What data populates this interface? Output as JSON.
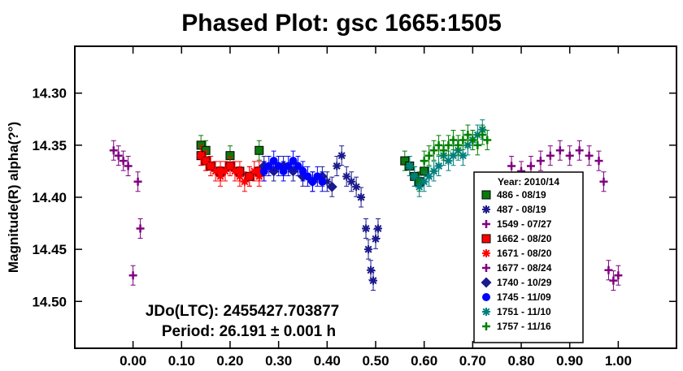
{
  "chart_data": {
    "type": "scatter",
    "title": "Phased Plot: gsc 1665:1505",
    "xlabel": "",
    "ylabel": "Magnitude(R) alpha(?°)",
    "xlim": [
      -0.12,
      1.12
    ],
    "ylim": [
      14.545,
      14.255
    ],
    "y_inverted": true,
    "x_ticks": [
      "0.00",
      "0.10",
      "0.20",
      "0.30",
      "0.40",
      "0.50",
      "0.60",
      "0.70",
      "0.80",
      "0.90",
      "1.00"
    ],
    "x_tick_values": [
      0.0,
      0.1,
      0.2,
      0.3,
      0.4,
      0.5,
      0.6,
      0.7,
      0.8,
      0.9,
      1.0
    ],
    "y_ticks": [
      "14.30",
      "14.35",
      "14.40",
      "14.45",
      "14.50"
    ],
    "y_tick_values": [
      14.3,
      14.35,
      14.4,
      14.45,
      14.5
    ],
    "grid": false,
    "legend_position": "lower-right",
    "annotations": [
      "JDo(LTC): 2455427.703877",
      "Period: 26.191 ± 0.001 h"
    ],
    "legend": {
      "title": "Year: 2010/14",
      "entries": [
        {
          "label": "486 - 08/19",
          "color": "#0a7a0a",
          "marker": "square"
        },
        {
          "label": "487 - 08/19",
          "color": "#1a1a8c",
          "marker": "asterisk"
        },
        {
          "label": "1549 - 07/27",
          "color": "#800080",
          "marker": "plus"
        },
        {
          "label": "1662 - 08/20",
          "color": "#ff0000",
          "marker": "square"
        },
        {
          "label": "1671 - 08/20",
          "color": "#ff0000",
          "marker": "asterisk"
        },
        {
          "label": "1677 - 08/24",
          "color": "#800080",
          "marker": "plus"
        },
        {
          "label": "1740 - 10/29",
          "color": "#1a1a8c",
          "marker": "diamond"
        },
        {
          "label": "1745 - 11/09",
          "color": "#0000ff",
          "marker": "circle"
        },
        {
          "label": "1751 - 11/10",
          "color": "#008080",
          "marker": "asterisk"
        },
        {
          "label": "1757 - 11/16",
          "color": "#008000",
          "marker": "plus"
        }
      ]
    },
    "series": [
      {
        "name": "486 - 08/19",
        "color": "#0a7a0a",
        "marker": "square",
        "x": [
          0.14,
          0.15,
          0.2,
          0.26,
          0.56,
          0.57,
          0.58,
          0.59,
          0.6
        ],
        "y": [
          14.35,
          14.355,
          14.36,
          14.355,
          14.365,
          14.37,
          14.38,
          14.385,
          14.375
        ]
      },
      {
        "name": "487 - 08/19",
        "color": "#1a1a8c",
        "marker": "asterisk",
        "x": [
          0.4,
          0.42,
          0.43,
          0.44,
          0.45,
          0.46,
          0.47,
          0.48,
          0.485,
          0.49,
          0.495,
          0.5,
          0.505
        ],
        "y": [
          14.385,
          14.37,
          14.36,
          14.38,
          14.385,
          14.39,
          14.4,
          14.43,
          14.45,
          14.47,
          14.48,
          14.44,
          14.43
        ]
      },
      {
        "name": "1549 - 07/27",
        "color": "#800080",
        "marker": "plus",
        "x": [
          -0.04,
          -0.03,
          -0.02,
          -0.01,
          0.0,
          0.01,
          0.015
        ],
        "y": [
          14.355,
          14.36,
          14.365,
          14.37,
          14.475,
          14.385,
          14.43
        ]
      },
      {
        "name": "1662 - 08/20",
        "color": "#ff0000",
        "marker": "square",
        "x": [
          0.14,
          0.15,
          0.16,
          0.18,
          0.2,
          0.22,
          0.24,
          0.26
        ],
        "y": [
          14.36,
          14.365,
          14.37,
          14.375,
          14.37,
          14.375,
          14.38,
          14.375
        ]
      },
      {
        "name": "1671 - 08/20",
        "color": "#ff0000",
        "marker": "asterisk",
        "x": [
          0.14,
          0.15,
          0.16,
          0.17,
          0.18,
          0.19,
          0.2,
          0.21,
          0.22,
          0.23,
          0.24,
          0.25,
          0.26,
          0.27
        ],
        "y": [
          14.36,
          14.365,
          14.37,
          14.375,
          14.38,
          14.375,
          14.37,
          14.375,
          14.38,
          14.385,
          14.38,
          14.375,
          14.38,
          14.375
        ]
      },
      {
        "name": "1677 - 08/24",
        "color": "#800080",
        "marker": "plus",
        "x": [
          0.78,
          0.8,
          0.82,
          0.84,
          0.86,
          0.88,
          0.9,
          0.92,
          0.94,
          0.96,
          0.97,
          0.98,
          0.99,
          1.0
        ],
        "y": [
          14.37,
          14.375,
          14.37,
          14.365,
          14.36,
          14.355,
          14.36,
          14.355,
          14.36,
          14.365,
          14.385,
          14.47,
          14.48,
          14.475
        ]
      },
      {
        "name": "1740 - 10/29",
        "color": "#1a1a8c",
        "marker": "diamond",
        "x": [
          0.27,
          0.29,
          0.31,
          0.33,
          0.35,
          0.37,
          0.39,
          0.41
        ],
        "y": [
          14.37,
          14.375,
          14.37,
          14.375,
          14.38,
          14.385,
          14.38,
          14.39
        ]
      },
      {
        "name": "1745 - 11/09",
        "color": "#0000ff",
        "marker": "circle",
        "x": [
          0.27,
          0.28,
          0.29,
          0.3,
          0.31,
          0.32,
          0.33,
          0.34,
          0.35,
          0.36,
          0.37,
          0.38,
          0.39
        ],
        "y": [
          14.375,
          14.37,
          14.365,
          14.37,
          14.375,
          14.37,
          14.365,
          14.37,
          14.375,
          14.38,
          14.385,
          14.38,
          14.385
        ]
      },
      {
        "name": "1751 - 11/10",
        "color": "#008080",
        "marker": "asterisk",
        "x": [
          0.57,
          0.58,
          0.59,
          0.6,
          0.61,
          0.62,
          0.63,
          0.64,
          0.65,
          0.66,
          0.67,
          0.68,
          0.69,
          0.7,
          0.71,
          0.72
        ],
        "y": [
          14.37,
          14.38,
          14.39,
          14.385,
          14.38,
          14.375,
          14.37,
          14.36,
          14.365,
          14.36,
          14.355,
          14.36,
          14.35,
          14.345,
          14.34,
          14.335
        ]
      },
      {
        "name": "1757 - 11/16",
        "color": "#008000",
        "marker": "plus",
        "x": [
          0.6,
          0.61,
          0.62,
          0.63,
          0.64,
          0.65,
          0.66,
          0.67,
          0.68,
          0.69,
          0.7,
          0.71,
          0.72,
          0.73
        ],
        "y": [
          14.365,
          14.36,
          14.355,
          14.35,
          14.355,
          14.35,
          14.345,
          14.35,
          14.345,
          14.34,
          14.345,
          14.35,
          14.34,
          14.345
        ]
      }
    ]
  }
}
